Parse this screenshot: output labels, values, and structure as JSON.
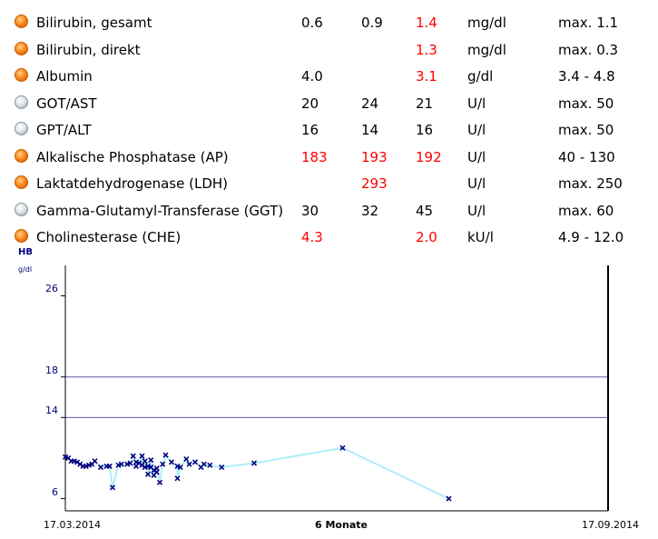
{
  "lab_rows": [
    {
      "indicator": "orange-dot-icon",
      "name": "Bilirubin, gesamt",
      "v1": "0.6",
      "v2": "0.9",
      "v3": "1.4",
      "unit": "mg/dl",
      "ref": "max. 1.1",
      "v1_red": false,
      "v2_red": false,
      "v3_red": true
    },
    {
      "indicator": "orange-dot-icon",
      "name": "Bilirubin, direkt",
      "v1": "",
      "v2": "",
      "v3": "1.3",
      "unit": "mg/dl",
      "ref": "max. 0.3",
      "v1_red": false,
      "v2_red": false,
      "v3_red": true
    },
    {
      "indicator": "orange-dot-icon",
      "name": "Albumin",
      "v1": "4.0",
      "v2": "",
      "v3": "3.1",
      "unit": "g/dl",
      "ref": "3.4 - 4.8",
      "v1_red": false,
      "v2_red": false,
      "v3_red": true
    },
    {
      "indicator": "gray-dot-icon",
      "name": "GOT/AST",
      "v1": "20",
      "v2": "24",
      "v3": "21",
      "unit": "U/l",
      "ref": "max. 50",
      "v1_red": false,
      "v2_red": false,
      "v3_red": false
    },
    {
      "indicator": "gray-dot-icon",
      "name": "GPT/ALT",
      "v1": "16",
      "v2": "14",
      "v3": "16",
      "unit": "U/l",
      "ref": "max. 50",
      "v1_red": false,
      "v2_red": false,
      "v3_red": false
    },
    {
      "indicator": "orange-dot-icon",
      "name": "Alkalische Phosphatase (AP)",
      "v1": "183",
      "v2": "193",
      "v3": "192",
      "unit": "U/l",
      "ref": "40 - 130",
      "v1_red": true,
      "v2_red": true,
      "v3_red": true
    },
    {
      "indicator": "orange-dot-icon",
      "name": "Laktatdehydrogenase (LDH)",
      "v1": "",
      "v2": "293",
      "v3": "",
      "unit": "U/l",
      "ref": "max. 250",
      "v1_red": false,
      "v2_red": true,
      "v3_red": false
    },
    {
      "indicator": "gray-dot-icon",
      "name": "Gamma-Glutamyl-Transferase (GGT)",
      "v1": "30",
      "v2": "32",
      "v3": "45",
      "unit": "U/l",
      "ref": "max. 60",
      "v1_red": false,
      "v2_red": false,
      "v3_red": false
    },
    {
      "indicator": "orange-dot-icon",
      "name": "Cholinesterase (CHE)",
      "v1": "4.3",
      "v2": "",
      "v3": "2.0",
      "unit": "kU/l",
      "ref": "4.9 - 12.0",
      "v1_red": true,
      "v2_red": false,
      "v3_red": true
    }
  ],
  "colors": {
    "flag_red": "#ff0000",
    "axis_blue": "#000080",
    "line_cyan": "#aeeef8",
    "ref_line": "#5a5ab4"
  },
  "chart_data": {
    "type": "line",
    "title": "HB",
    "ylabel": "g/dl",
    "y_ticks": [
      26,
      18,
      14,
      6
    ],
    "reference_lines": [
      18,
      14
    ],
    "x_axis_labels": {
      "start": "17.03.2014",
      "middle": "6 Monate",
      "end": "17.09.2014"
    },
    "ylim": [
      4.8,
      29
    ],
    "x_start": "2014-03-17",
    "x_end": "2014-09-17",
    "series": [
      {
        "x": [
          "2014-03-17",
          "2014-03-18",
          "2014-03-19",
          "2014-03-20",
          "2014-03-21",
          "2014-03-22",
          "2014-03-23",
          "2014-03-24",
          "2014-03-25",
          "2014-03-26",
          "2014-03-27",
          "2014-03-29",
          "2014-03-31",
          "2014-04-01",
          "2014-04-02",
          "2014-04-04",
          "2014-04-05",
          "2014-04-07",
          "2014-04-08",
          "2014-04-09",
          "2014-04-10",
          "2014-04-10",
          "2014-04-11",
          "2014-04-12",
          "2014-04-12",
          "2014-04-13",
          "2014-04-13",
          "2014-04-14",
          "2014-04-14",
          "2014-04-15",
          "2014-04-15",
          "2014-04-16",
          "2014-04-16",
          "2014-04-17",
          "2014-04-17",
          "2014-04-18",
          "2014-04-19",
          "2014-04-20",
          "2014-04-22",
          "2014-04-24",
          "2014-04-24",
          "2014-04-25",
          "2014-04-27",
          "2014-04-28",
          "2014-04-30",
          "2014-05-02",
          "2014-05-03",
          "2014-05-05",
          "2014-05-09",
          "2014-05-20",
          "2014-06-19",
          "2014-07-25"
        ],
        "y": [
          10.1,
          10.0,
          9.7,
          9.7,
          9.6,
          9.4,
          9.2,
          9.2,
          9.3,
          9.4,
          9.7,
          9.1,
          9.2,
          9.2,
          7.1,
          9.3,
          9.4,
          9.4,
          9.5,
          10.2,
          9.6,
          9.2,
          9.5,
          10.2,
          9.3,
          9.1,
          9.7,
          9.2,
          8.4,
          9.1,
          9.8,
          8.8,
          8.3,
          8.6,
          9.0,
          7.6,
          9.4,
          10.3,
          9.6,
          9.2,
          8.0,
          9.1,
          9.9,
          9.4,
          9.6,
          9.1,
          9.4,
          9.3,
          9.1,
          9.5,
          11.0,
          6.0
        ]
      }
    ]
  }
}
